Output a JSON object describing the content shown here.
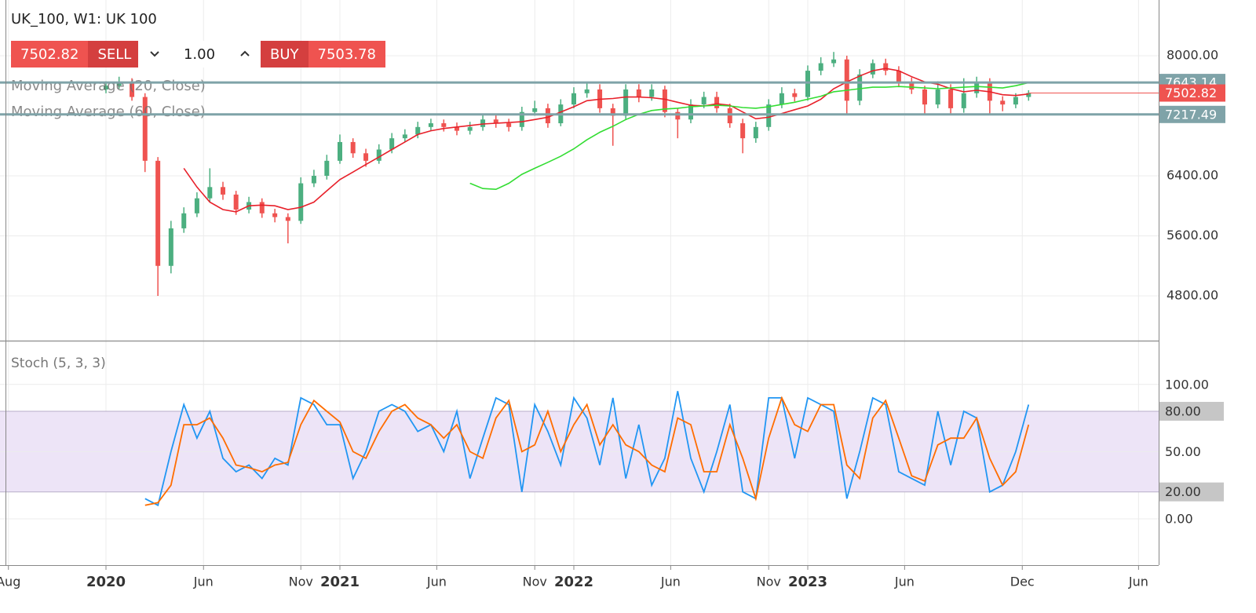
{
  "toolbar": {
    "symbol": "UK_100, W1: UK 100",
    "sell_price": 7502.82,
    "sell_label": "SELL",
    "quantity": "1.00",
    "buy_label": "BUY",
    "buy_price": 7503.78
  },
  "chart_data": [
    {
      "type": "candlestick",
      "x": [
        2020,
        2020.056,
        2020.111,
        2020.167,
        2020.222,
        2020.278,
        2020.333,
        2020.389,
        2020.444,
        2020.5,
        2020.556,
        2020.611,
        2020.667,
        2020.722,
        2020.778,
        2020.833,
        2020.889,
        2020.944,
        2021,
        2021.056,
        2021.111,
        2021.167,
        2021.222,
        2021.278,
        2021.333,
        2021.389,
        2021.444,
        2021.5,
        2021.556,
        2021.611,
        2021.667,
        2021.722,
        2021.778,
        2021.833,
        2021.889,
        2021.944,
        2022,
        2022.056,
        2022.111,
        2022.167,
        2022.222,
        2022.278,
        2022.333,
        2022.389,
        2022.444,
        2022.5,
        2022.556,
        2022.611,
        2022.667,
        2022.722,
        2022.778,
        2022.833,
        2022.889,
        2022.944,
        2023,
        2023.056,
        2023.111,
        2023.167,
        2023.222,
        2023.278,
        2023.333,
        2023.389,
        2023.444,
        2023.5,
        2023.556,
        2023.611,
        2023.667,
        2023.722,
        2023.778,
        2023.833,
        2023.889,
        2023.944
      ],
      "open": [
        7550,
        7600,
        7650,
        7450,
        6600,
        5200,
        5700,
        5900,
        6100,
        6250,
        6150,
        5950,
        6050,
        5900,
        5850,
        5800,
        6300,
        6400,
        6600,
        6850,
        6700,
        6600,
        6750,
        6900,
        6950,
        7050,
        7100,
        7050,
        7000,
        7050,
        7150,
        7100,
        7050,
        7250,
        7300,
        7100,
        7350,
        7500,
        7550,
        7300,
        7200,
        7550,
        7450,
        7550,
        7250,
        7150,
        7350,
        7450,
        7300,
        7100,
        6900,
        7050,
        7350,
        7500,
        7450,
        7800,
        7900,
        7950,
        7400,
        7750,
        7900,
        7800,
        7650,
        7550,
        7350,
        7550,
        7300,
        7500,
        7650,
        7400,
        7350,
        7450
      ],
      "high": [
        7660,
        7720,
        7700,
        7500,
        6650,
        5800,
        5980,
        6180,
        6500,
        6320,
        6200,
        6120,
        6100,
        5960,
        5900,
        6380,
        6480,
        6680,
        6950,
        6900,
        6760,
        6820,
        6970,
        7020,
        7120,
        7160,
        7150,
        7110,
        7120,
        7220,
        7210,
        7160,
        7320,
        7400,
        7360,
        7420,
        7580,
        7640,
        7620,
        7360,
        7620,
        7620,
        7620,
        7600,
        7300,
        7420,
        7520,
        7520,
        7360,
        7160,
        7120,
        7420,
        7580,
        7560,
        7870,
        7980,
        8050,
        8000,
        7820,
        7950,
        7960,
        7860,
        7710,
        7600,
        7660,
        7620,
        7700,
        7720,
        7700,
        7460,
        7500,
        7540
      ],
      "low": [
        7500,
        7560,
        7400,
        6450,
        4800,
        5100,
        5640,
        5850,
        6050,
        6080,
        5880,
        5900,
        5840,
        5780,
        5500,
        5760,
        6250,
        6350,
        6560,
        6640,
        6520,
        6560,
        6700,
        6850,
        6900,
        7000,
        6990,
        6940,
        6950,
        7000,
        7040,
        6990,
        7000,
        7200,
        7040,
        7060,
        7300,
        7440,
        7240,
        6800,
        7150,
        7380,
        7400,
        7180,
        6900,
        7100,
        7300,
        7240,
        7040,
        6700,
        6840,
        7000,
        7300,
        7390,
        7400,
        7740,
        7850,
        7220,
        7340,
        7700,
        7740,
        7590,
        7490,
        7220,
        7300,
        7220,
        7240,
        7440,
        7220,
        7260,
        7300,
        7400
      ],
      "close": [
        7600,
        7650,
        7450,
        6600,
        5200,
        5700,
        5900,
        6100,
        6250,
        6150,
        5950,
        6050,
        5900,
        5850,
        5800,
        6300,
        6400,
        6600,
        6850,
        6700,
        6600,
        6750,
        6900,
        6950,
        7050,
        7100,
        7050,
        7000,
        7050,
        7150,
        7100,
        7050,
        7250,
        7300,
        7100,
        7350,
        7500,
        7550,
        7300,
        7200,
        7550,
        7450,
        7550,
        7250,
        7150,
        7350,
        7450,
        7300,
        7100,
        6900,
        7050,
        7350,
        7500,
        7450,
        7800,
        7900,
        7950,
        7400,
        7750,
        7900,
        7800,
        7650,
        7550,
        7350,
        7550,
        7300,
        7500,
        7650,
        7400,
        7350,
        7450,
        7502.82
      ],
      "up_color": "#4caf80",
      "down_color": "#ef5350",
      "series": [
        {
          "name": "Moving Average (20, Close)",
          "color": "#e8202a",
          "values": [
            null,
            null,
            null,
            null,
            null,
            null,
            6500,
            6250,
            6050,
            5950,
            5920,
            6000,
            6010,
            6000,
            5950,
            5980,
            6050,
            6200,
            6350,
            6450,
            6550,
            6650,
            6750,
            6850,
            6950,
            7000,
            7030,
            7050,
            7070,
            7090,
            7100,
            7110,
            7120,
            7150,
            7180,
            7250,
            7320,
            7400,
            7420,
            7430,
            7450,
            7450,
            7440,
            7420,
            7380,
            7340,
            7330,
            7360,
            7340,
            7250,
            7160,
            7180,
            7230,
            7280,
            7330,
            7420,
            7560,
            7650,
            7730,
            7800,
            7830,
            7800,
            7720,
            7650,
            7620,
            7560,
            7520,
            7540,
            7520,
            7480,
            7470,
            7490
          ]
        },
        {
          "name": "Moving Average (60, Close)",
          "color": "#33dd33",
          "values": [
            null,
            null,
            null,
            null,
            null,
            null,
            null,
            null,
            null,
            null,
            null,
            null,
            null,
            null,
            null,
            null,
            null,
            null,
            null,
            null,
            null,
            null,
            null,
            null,
            null,
            null,
            null,
            null,
            6300,
            6230,
            6220,
            6300,
            6420,
            6500,
            6580,
            6660,
            6760,
            6880,
            6980,
            7060,
            7150,
            7220,
            7270,
            7290,
            7300,
            7320,
            7330,
            7340,
            7330,
            7310,
            7300,
            7320,
            7350,
            7380,
            7420,
            7460,
            7520,
            7540,
            7560,
            7580,
            7580,
            7590,
            7580,
            7570,
            7560,
            7570,
            7580,
            7590,
            7580,
            7570,
            7600,
            7640
          ]
        }
      ],
      "levels": [
        7643.14,
        7217.49
      ],
      "level_color": "#7fa3a8",
      "last_price": 7502.82,
      "last_price_color": "#ef5350",
      "xlim": [
        2019.547,
        2024.5
      ],
      "ylim": [
        4204,
        8742
      ],
      "yticks": [
        {
          "value": 4800,
          "label": "4800.00"
        },
        {
          "value": 5600,
          "label": "5600.00"
        },
        {
          "value": 6400,
          "label": "6400.00"
        },
        {
          "value": 8000,
          "label": "8000.00"
        }
      ],
      "grid": true
    },
    {
      "type": "line",
      "title": "Stoch (5, 3, 3)",
      "x": [
        2020,
        2020.056,
        2020.111,
        2020.167,
        2020.222,
        2020.278,
        2020.333,
        2020.389,
        2020.444,
        2020.5,
        2020.556,
        2020.611,
        2020.667,
        2020.722,
        2020.778,
        2020.833,
        2020.889,
        2020.944,
        2021,
        2021.056,
        2021.111,
        2021.167,
        2021.222,
        2021.278,
        2021.333,
        2021.389,
        2021.444,
        2021.5,
        2021.556,
        2021.611,
        2021.667,
        2021.722,
        2021.778,
        2021.833,
        2021.889,
        2021.944,
        2022,
        2022.056,
        2022.111,
        2022.167,
        2022.222,
        2022.278,
        2022.333,
        2022.389,
        2022.444,
        2022.5,
        2022.556,
        2022.611,
        2022.667,
        2022.722,
        2022.778,
        2022.833,
        2022.889,
        2022.944,
        2023,
        2023.056,
        2023.111,
        2023.167,
        2023.222,
        2023.278,
        2023.333,
        2023.389,
        2023.444,
        2023.5,
        2023.556,
        2023.611,
        2023.667,
        2023.722,
        2023.778,
        2023.833,
        2023.889,
        2023.944
      ],
      "series": [
        {
          "color": "#2196f3",
          "values": [
            null,
            null,
            null,
            15,
            10,
            50,
            85,
            60,
            80,
            45,
            35,
            40,
            30,
            45,
            40,
            90,
            85,
            70,
            70,
            30,
            50,
            80,
            85,
            80,
            65,
            70,
            50,
            80,
            30,
            60,
            90,
            85,
            20,
            85,
            65,
            40,
            90,
            75,
            40,
            90,
            30,
            70,
            25,
            45,
            95,
            45,
            20,
            50,
            85,
            20,
            15,
            90,
            90,
            45,
            90,
            85,
            80,
            15,
            50,
            90,
            85,
            35,
            30,
            25,
            80,
            40,
            80,
            75,
            20,
            25,
            50,
            85
          ]
        },
        {
          "color": "#ff6d00",
          "values": [
            null,
            null,
            null,
            10,
            12,
            25,
            70,
            70,
            75,
            60,
            40,
            38,
            35,
            40,
            42,
            70,
            88,
            80,
            72,
            50,
            45,
            65,
            80,
            85,
            75,
            70,
            60,
            70,
            50,
            45,
            75,
            88,
            50,
            55,
            80,
            50,
            70,
            85,
            55,
            70,
            55,
            50,
            40,
            35,
            75,
            70,
            35,
            35,
            70,
            45,
            15,
            60,
            90,
            70,
            65,
            85,
            85,
            40,
            30,
            75,
            88,
            60,
            32,
            28,
            55,
            60,
            60,
            75,
            45,
            25,
            35,
            70
          ]
        }
      ],
      "band": [
        20,
        80
      ],
      "band_color": "#ede4f7",
      "xlim": [
        2019.547,
        2024.5
      ],
      "ylim": [
        -34.5,
        132
      ],
      "xticks": [
        {
          "value": 2019.583,
          "label": "Aug"
        },
        2020,
        {
          "value": 2020.417,
          "label": "Jun"
        },
        {
          "value": 2020.833,
          "label": "Nov"
        },
        2021,
        {
          "value": 2021.414,
          "label": "Jun"
        },
        {
          "value": 2021.833,
          "label": "Nov"
        },
        2022,
        {
          "value": 2022.414,
          "label": "Jun"
        },
        {
          "value": 2022.833,
          "label": "Nov"
        },
        2023,
        {
          "value": 2023.414,
          "label": "Jun"
        },
        {
          "value": 2023.917,
          "label": "Dec"
        },
        {
          "value": 2024.414,
          "label": "Jun"
        }
      ],
      "yticks": [
        {
          "value": 0,
          "label": "0.00"
        },
        {
          "value": 20,
          "label": "20.00"
        },
        {
          "value": 50,
          "label": "50.00"
        },
        {
          "value": 80,
          "label": "80.00"
        },
        {
          "value": 100,
          "label": "100.00"
        }
      ],
      "grid": true
    }
  ]
}
